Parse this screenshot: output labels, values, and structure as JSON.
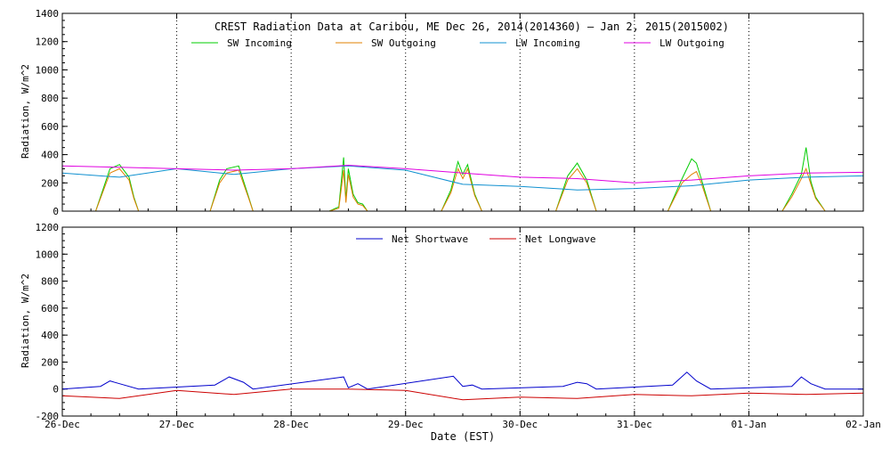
{
  "chart_data": [
    {
      "type": "line",
      "title": "CREST Radiation Data at Caribou, ME   Dec 26, 2014(2014360) – Jan  2, 2015(2015002)",
      "ylabel": "Radiation, W/m^2",
      "ylim": [
        0,
        1400
      ],
      "yticks": [
        0,
        200,
        400,
        600,
        800,
        1000,
        1200,
        1400
      ],
      "xlim": [
        "2014-12-26",
        "2015-01-02"
      ],
      "grid": true,
      "legend": "top",
      "series": [
        {
          "name": "SW Incoming",
          "color": "#00cc00",
          "x": [
            "12-26 07:00",
            "12-26 09:00",
            "12-26 10:00",
            "12-26 12:00",
            "12-26 14:00",
            "12-26 15:00",
            "12-26 16:00",
            "12-27 07:00",
            "12-27 09:00",
            "12-27 10:30",
            "12-27 13:00",
            "12-27 15:00",
            "12-27 16:00",
            "12-28 08:00",
            "12-28 10:00",
            "12-28 11:00",
            "12-28 11:30",
            "12-28 12:00",
            "12-28 13:00",
            "12-28 14:00",
            "12-28 15:00",
            "12-28 16:00",
            "12-29 07:30",
            "12-29 09:30",
            "12-29 11:00",
            "12-29 12:00",
            "12-29 13:00",
            "12-29 14:30",
            "12-29 16:00",
            "12-30 07:30",
            "12-30 10:00",
            "12-30 12:00",
            "12-30 14:00",
            "12-30 16:00",
            "12-31 07:00",
            "12-31 10:00",
            "12-31 12:00",
            "12-31 13:00",
            "12-31 14:00",
            "12-31 16:00",
            "01-01 07:00",
            "01-01 09:00",
            "01-01 11:00",
            "01-01 12:00",
            "01-01 13:00",
            "01-01 14:00",
            "01-01 16:00"
          ],
          "values": [
            0,
            200,
            300,
            330,
            240,
            100,
            0,
            0,
            220,
            300,
            320,
            110,
            0,
            0,
            30,
            380,
            80,
            300,
            120,
            60,
            50,
            0,
            0,
            150,
            350,
            260,
            330,
            120,
            0,
            0,
            250,
            340,
            220,
            0,
            0,
            230,
            370,
            340,
            230,
            0,
            0,
            120,
            260,
            450,
            210,
            100,
            0
          ]
        },
        {
          "name": "SW Outgoing",
          "color": "#e08000",
          "x": [
            "12-26 07:00",
            "12-26 09:00",
            "12-26 10:00",
            "12-26 12:00",
            "12-26 14:00",
            "12-26 15:00",
            "12-26 16:00",
            "12-27 07:00",
            "12-27 09:00",
            "12-27 10:30",
            "12-27 13:00",
            "12-27 15:00",
            "12-27 16:00",
            "12-28 08:00",
            "12-28 10:00",
            "12-28 11:00",
            "12-28 11:30",
            "12-28 12:00",
            "12-28 13:00",
            "12-28 14:00",
            "12-28 15:00",
            "12-28 16:00",
            "12-29 07:30",
            "12-29 09:30",
            "12-29 11:00",
            "12-29 12:00",
            "12-29 13:00",
            "12-29 14:30",
            "12-29 16:00",
            "12-30 07:30",
            "12-30 10:00",
            "12-30 12:00",
            "12-30 14:00",
            "12-30 16:00",
            "12-31 07:00",
            "12-31 10:00",
            "12-31 12:00",
            "12-31 13:00",
            "12-31 14:00",
            "12-31 16:00",
            "01-01 07:00",
            "01-01 09:00",
            "01-01 11:00",
            "01-01 12:00",
            "01-01 13:00",
            "01-01 14:00",
            "01-01 16:00"
          ],
          "values": [
            0,
            180,
            270,
            300,
            220,
            90,
            0,
            0,
            200,
            270,
            290,
            100,
            0,
            0,
            20,
            290,
            60,
            260,
            100,
            50,
            40,
            0,
            0,
            130,
            300,
            230,
            300,
            110,
            0,
            0,
            220,
            300,
            200,
            0,
            0,
            200,
            260,
            280,
            200,
            0,
            0,
            100,
            230,
            300,
            190,
            90,
            0
          ]
        },
        {
          "name": "LW Incoming",
          "color": "#1090d0",
          "x": [
            "12-26 00:00",
            "12-26 12:00",
            "12-27 00:00",
            "12-27 12:00",
            "12-28 00:00",
            "12-28 12:00",
            "12-29 00:00",
            "12-29 12:00",
            "12-30 00:00",
            "12-30 12:00",
            "12-31 00:00",
            "12-31 12:00",
            "01-01 00:00",
            "01-01 12:00",
            "01-02 00:00"
          ],
          "values": [
            270,
            240,
            300,
            260,
            300,
            320,
            290,
            190,
            175,
            150,
            160,
            180,
            220,
            240,
            250
          ]
        },
        {
          "name": "LW Outgoing",
          "color": "#e000e0",
          "x": [
            "12-26 00:00",
            "12-26 12:00",
            "12-27 00:00",
            "12-27 12:00",
            "12-28 00:00",
            "12-28 12:00",
            "12-29 00:00",
            "12-29 12:00",
            "12-30 00:00",
            "12-30 12:00",
            "12-31 00:00",
            "12-31 12:00",
            "01-01 00:00",
            "01-01 12:00",
            "01-02 00:00"
          ],
          "values": [
            320,
            310,
            300,
            290,
            300,
            325,
            300,
            270,
            240,
            230,
            200,
            220,
            250,
            270,
            275
          ]
        }
      ]
    },
    {
      "type": "line",
      "ylabel": "Radiation, W/m^2",
      "xlabel": "Date (EST)",
      "ylim": [
        -200,
        1200
      ],
      "yticks": [
        -200,
        0,
        200,
        400,
        600,
        800,
        1000,
        1200
      ],
      "xlim": [
        "2014-12-26",
        "2015-01-02"
      ],
      "xticks": [
        "26-Dec",
        "27-Dec",
        "28-Dec",
        "29-Dec",
        "30-Dec",
        "31-Dec",
        "01-Jan",
        "02-Jan"
      ],
      "grid": true,
      "legend": "top",
      "series": [
        {
          "name": "Net Shortwave",
          "color": "#0000cc",
          "x": [
            "12-26 00:00",
            "12-26 08:00",
            "12-26 10:00",
            "12-26 12:00",
            "12-26 16:00",
            "12-27 08:00",
            "12-27 11:00",
            "12-27 14:00",
            "12-27 16:00",
            "12-28 11:00",
            "12-28 12:00",
            "12-28 14:00",
            "12-28 16:00",
            "12-29 10:00",
            "12-29 12:00",
            "12-29 14:00",
            "12-29 16:00",
            "12-30 09:00",
            "12-30 12:00",
            "12-30 14:00",
            "12-30 16:00",
            "12-31 08:00",
            "12-31 11:00",
            "12-31 13:00",
            "12-31 16:00",
            "01-01 09:00",
            "01-01 11:00",
            "01-01 13:00",
            "01-01 16:00",
            "01-02 00:00"
          ],
          "values": [
            0,
            20,
            60,
            40,
            0,
            30,
            90,
            50,
            0,
            90,
            10,
            40,
            0,
            95,
            20,
            30,
            0,
            20,
            50,
            40,
            0,
            30,
            125,
            60,
            0,
            20,
            90,
            40,
            0,
            0
          ]
        },
        {
          "name": "Net Longwave",
          "color": "#cc0000",
          "x": [
            "12-26 00:00",
            "12-26 12:00",
            "12-27 00:00",
            "12-27 12:00",
            "12-28 00:00",
            "12-28 12:00",
            "12-29 00:00",
            "12-29 12:00",
            "12-30 00:00",
            "12-30 12:00",
            "12-31 00:00",
            "12-31 12:00",
            "01-01 00:00",
            "01-01 12:00",
            "01-02 00:00"
          ],
          "values": [
            -50,
            -70,
            -10,
            -40,
            0,
            0,
            -10,
            -80,
            -60,
            -70,
            -40,
            -50,
            -30,
            -40,
            -30
          ]
        }
      ]
    }
  ]
}
